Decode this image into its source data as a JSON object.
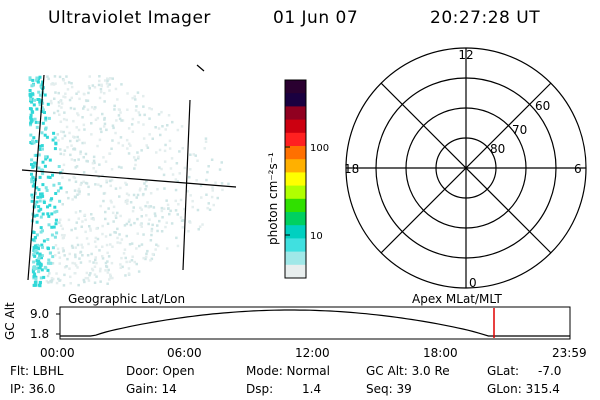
{
  "header": {
    "instrument": "Ultraviolet Imager",
    "date": "01 Jun 07",
    "time": "20:27:28 UT"
  },
  "colorbar": {
    "label": "photon cm⁻²s⁻¹",
    "ticks": [
      "100",
      "10"
    ],
    "colors": [
      "#2a0030",
      "#1a0040",
      "#900020",
      "#cc0010",
      "#ff2020",
      "#ff7000",
      "#ffb000",
      "#ffff00",
      "#b0ff00",
      "#30e000",
      "#00d060",
      "#00d0c0",
      "#40e0e0",
      "#a0e8e8",
      "#e8eeee"
    ]
  },
  "polar": {
    "mlt_labels": [
      "12",
      "18",
      "6",
      "0"
    ],
    "lat_labels": [
      "60",
      "70",
      "80"
    ]
  },
  "altitude": {
    "left_title": "Geographic Lat/Lon",
    "right_title": "Apex MLat/MLT",
    "ylabel": "GC Alt",
    "ytick_top": "9.0",
    "ytick_bottom": "1.8",
    "xticks": [
      "00:00",
      "06:00",
      "12:00",
      "18:00",
      "23:59"
    ],
    "marker_color": "#e00000"
  },
  "footer": {
    "flt": "Flt: LBHL",
    "ip": "IP: 36.0",
    "door": "Door: Open",
    "gain": "Gain: 14",
    "mode": "Mode: Normal",
    "dsp_label": "Dsp:",
    "dsp_value": "1.4",
    "gcalt": "GC Alt: 3.0 Re",
    "seq": "Seq: 39",
    "glat_label": "GLat:",
    "glat_value": "-7.0",
    "glon": "GLon: 315.4"
  }
}
